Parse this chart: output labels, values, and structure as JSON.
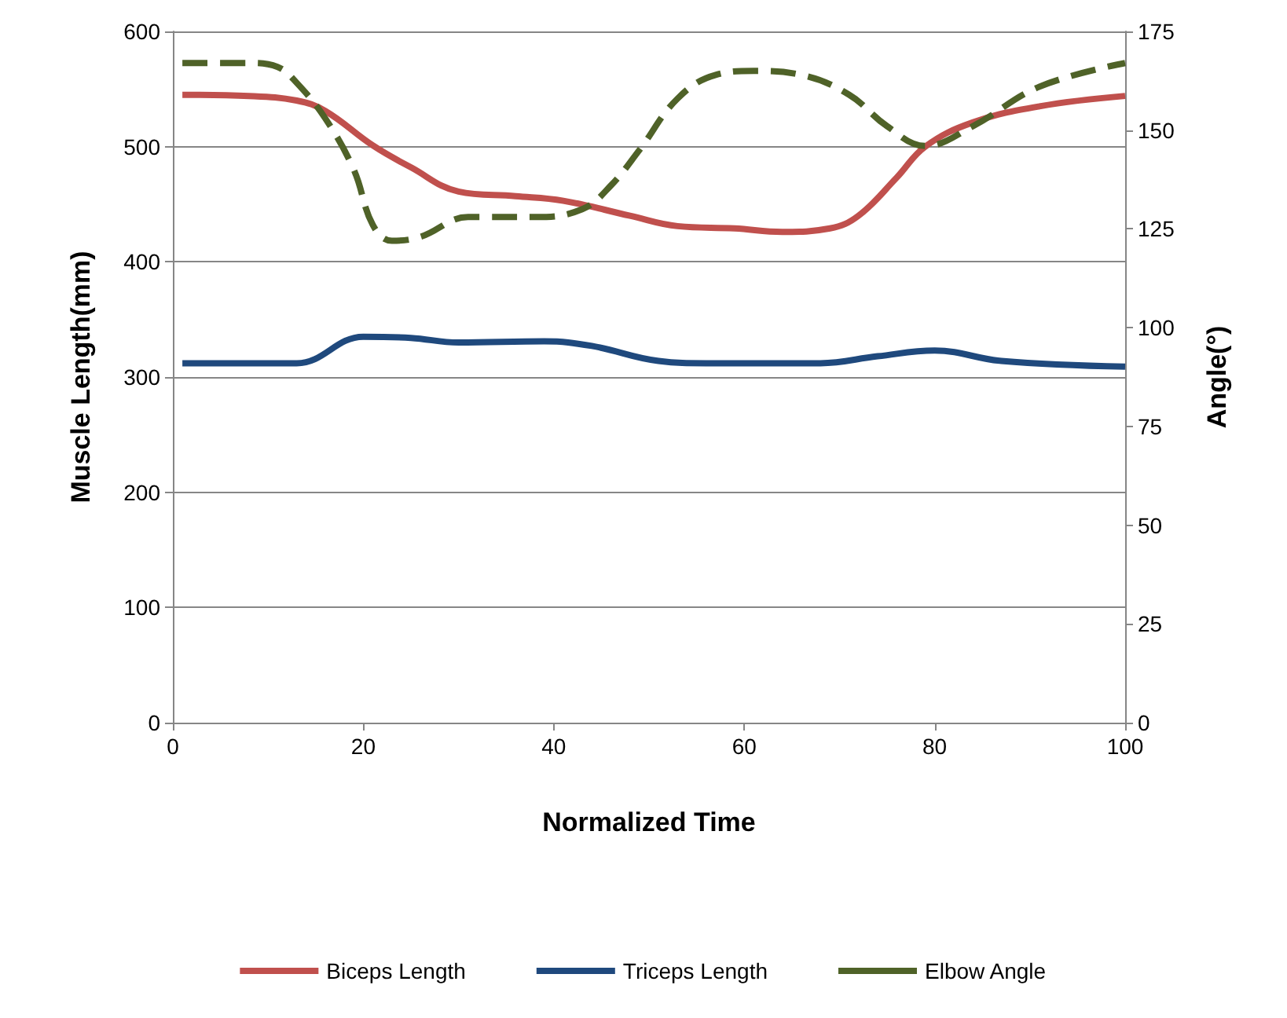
{
  "chart_data": {
    "type": "line",
    "xlabel": "Normalized Time",
    "ylabel": "Muscle Length(mm)",
    "y2label": "Angle(°)",
    "xlim": [
      0,
      100
    ],
    "xticks": [
      0,
      20,
      40,
      60,
      80,
      100
    ],
    "ylim": [
      0,
      600
    ],
    "yticks": [
      0,
      100,
      200,
      300,
      400,
      500,
      600
    ],
    "y2lim": [
      0,
      175
    ],
    "y2ticks": [
      0,
      25,
      50,
      75,
      100,
      125,
      150,
      175
    ],
    "grid": "y",
    "legend": "bottom",
    "marker": "none",
    "series": [
      {
        "name": "Biceps Length",
        "color": "#c0504d",
        "line_style": "solid",
        "x": [
          1,
          8,
          13,
          16,
          21,
          25,
          30,
          36,
          41,
          48,
          53,
          59,
          64,
          69,
          72,
          76,
          79,
          84,
          91,
          100
        ],
        "values": [
          545,
          544,
          540,
          531,
          501,
          482,
          461,
          457,
          453,
          440,
          431,
          429,
          426,
          429,
          440,
          473,
          500,
          521,
          535,
          544
        ]
      },
      {
        "name": "Triceps Length",
        "color": "#1f497d",
        "line_style": "solid",
        "x": [
          1,
          13,
          20,
          25,
          30,
          39,
          44,
          51,
          56,
          68,
          74,
          80,
          87,
          100
        ],
        "values": [
          312,
          312,
          335,
          334,
          330,
          331,
          327,
          314,
          312,
          312,
          318,
          323,
          314,
          309
        ]
      },
      {
        "name": "Elbow Angle",
        "color": "#4f6228",
        "line_style": "dashed",
        "axis": "y2",
        "x": [
          1,
          8,
          11,
          13,
          16,
          19,
          21,
          23,
          26,
          31,
          38,
          43,
          46,
          49,
          53,
          57,
          61,
          66,
          71,
          75,
          79,
          84,
          91,
          100
        ],
        "values": [
          167,
          167,
          166,
          162,
          153,
          140,
          126,
          122,
          123,
          128,
          128,
          130,
          136,
          145,
          158,
          164,
          165,
          164,
          159,
          151,
          146,
          151,
          161,
          167
        ]
      }
    ]
  }
}
